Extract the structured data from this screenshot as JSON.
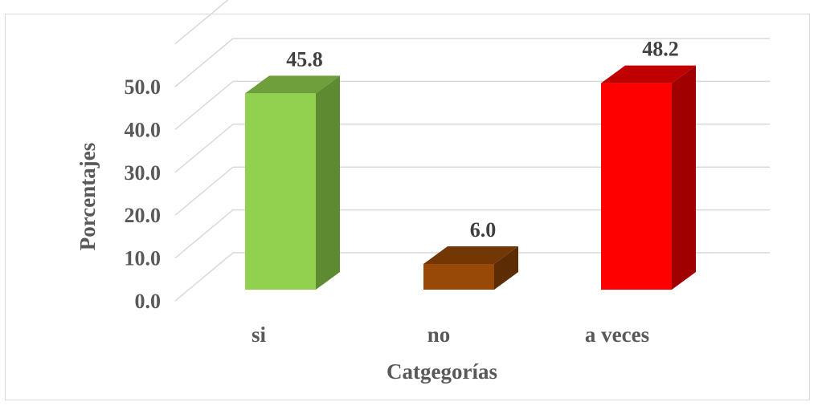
{
  "chart_data": {
    "type": "bar",
    "style": "3d-column",
    "categories": [
      "si",
      "no",
      "a veces"
    ],
    "values": [
      45.8,
      6.0,
      48.2
    ],
    "value_labels": [
      "45.8",
      "6.0",
      "48.2"
    ],
    "colors": {
      "front": [
        "#92d050",
        "#984807",
        "#ff0000"
      ],
      "side": [
        "#5e8a31",
        "#5c2c04",
        "#a00000"
      ],
      "top": [
        "#6f9e3c",
        "#733605",
        "#c00000"
      ],
      "grid": "#d9d9d9",
      "text": "#595959"
    },
    "xlabel": "Catgegorías",
    "ylabel": "Porcentajes",
    "ylim": [
      0,
      50
    ],
    "yticks": [
      "0.0",
      "10.0",
      "20.0",
      "30.0",
      "40.0",
      "50.0"
    ],
    "grid": true,
    "legend": "none"
  }
}
